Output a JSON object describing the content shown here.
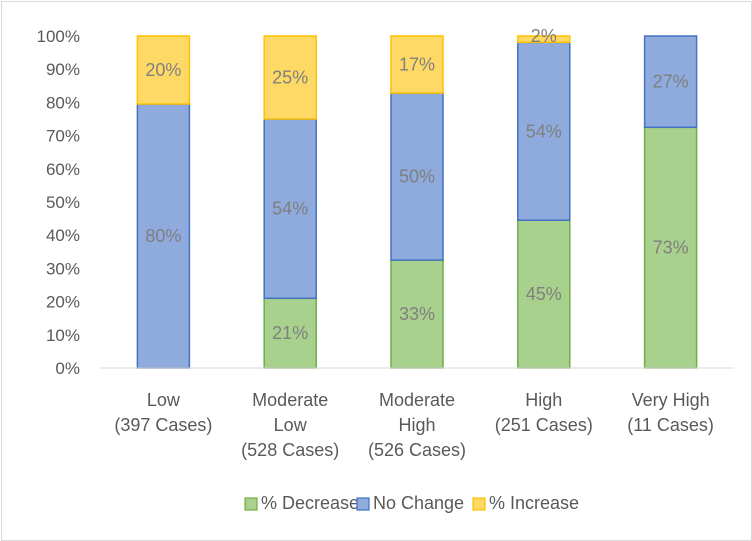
{
  "chart_data": {
    "type": "bar",
    "stacked": true,
    "categories": [
      [
        "Low",
        "(397 Cases)"
      ],
      [
        "Moderate",
        "Low",
        "(528 Cases)"
      ],
      [
        "Moderate",
        "High",
        "(526 Cases)"
      ],
      [
        "High",
        "(251 Cases)"
      ],
      [
        "Very High",
        "(11 Cases)"
      ]
    ],
    "series": [
      {
        "name": "% Decrease",
        "values": [
          0,
          21,
          32.5,
          44.5,
          72.5
        ],
        "labels": [
          "",
          "21%",
          "33%",
          "45%",
          "73%"
        ],
        "fill": "#a9d18e",
        "stroke": "#70ad47"
      },
      {
        "name": "No Change",
        "values": [
          79.5,
          54,
          50.3,
          53.6,
          27.5
        ],
        "labels": [
          "80%",
          "54%",
          "50%",
          "54%",
          "27%"
        ],
        "fill": "#8faadc",
        "stroke": "#4472c4"
      },
      {
        "name": "% Increase",
        "values": [
          20.5,
          25,
          17.2,
          1.9,
          0
        ],
        "labels": [
          "20%",
          "25%",
          "17%",
          "2%",
          ""
        ],
        "fill": "#ffd966",
        "stroke": "#ffc000"
      }
    ],
    "ylim": [
      0,
      100
    ],
    "yticks": [
      "0%",
      "10%",
      "20%",
      "30%",
      "40%",
      "50%",
      "60%",
      "70%",
      "80%",
      "90%",
      "100%"
    ],
    "grid": false,
    "legend": "bottom",
    "title": "",
    "xlabel": "",
    "ylabel": ""
  }
}
